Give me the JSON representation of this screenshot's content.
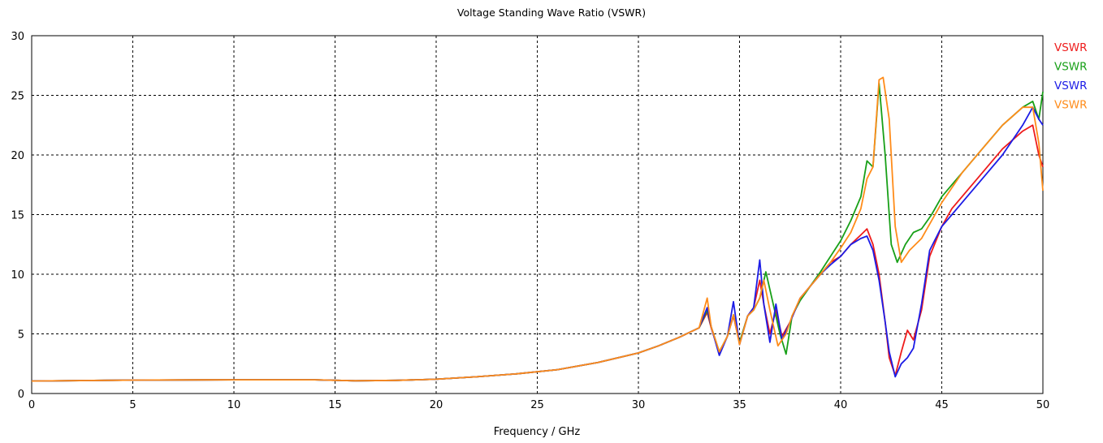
{
  "chart_data": {
    "type": "line",
    "title": "Voltage Standing Wave Ratio (VSWR)",
    "xlabel": "Frequency / GHz",
    "ylabel": "",
    "xlim": [
      0,
      50
    ],
    "ylim": [
      0,
      30
    ],
    "xticks": [
      0,
      5,
      10,
      15,
      20,
      25,
      30,
      35,
      40,
      45,
      50
    ],
    "yticks": [
      0,
      5,
      10,
      15,
      20,
      25,
      30
    ],
    "grid": true,
    "legend_position": "right",
    "series": [
      {
        "name": "VSWR",
        "color": "#ee1c1c",
        "points": [
          [
            0,
            1.05
          ],
          [
            5,
            1.12
          ],
          [
            10,
            1.15
          ],
          [
            14,
            1.15
          ],
          [
            16,
            1.07
          ],
          [
            18,
            1.1
          ],
          [
            20,
            1.2
          ],
          [
            22,
            1.4
          ],
          [
            24,
            1.65
          ],
          [
            26,
            2.0
          ],
          [
            28,
            2.6
          ],
          [
            30,
            3.4
          ],
          [
            31,
            4.0
          ],
          [
            32,
            4.7
          ],
          [
            33,
            5.5
          ],
          [
            33.4,
            6.8
          ],
          [
            33.6,
            5.5
          ],
          [
            34,
            3.4
          ],
          [
            34.4,
            4.8
          ],
          [
            34.7,
            6.5
          ],
          [
            35,
            4.2
          ],
          [
            35.4,
            6.5
          ],
          [
            35.7,
            7.2
          ],
          [
            36,
            9.5
          ],
          [
            36.2,
            7.5
          ],
          [
            36.5,
            5.0
          ],
          [
            36.8,
            7.0
          ],
          [
            37.1,
            4.8
          ],
          [
            37.5,
            6.0
          ],
          [
            38,
            8.0
          ],
          [
            38.5,
            9.0
          ],
          [
            39,
            10.0
          ],
          [
            39.5,
            11.0
          ],
          [
            40,
            11.5
          ],
          [
            40.5,
            12.5
          ],
          [
            41,
            13.3
          ],
          [
            41.3,
            13.8
          ],
          [
            41.6,
            12.5
          ],
          [
            41.9,
            10.0
          ],
          [
            42.2,
            6.0
          ],
          [
            42.4,
            3.0
          ],
          [
            42.7,
            1.5
          ],
          [
            43,
            3.5
          ],
          [
            43.3,
            5.3
          ],
          [
            43.6,
            4.5
          ],
          [
            44,
            7.0
          ],
          [
            44.4,
            11.5
          ],
          [
            45,
            14.0
          ],
          [
            45.5,
            15.5
          ],
          [
            46,
            16.5
          ],
          [
            47,
            18.5
          ],
          [
            48,
            20.5
          ],
          [
            49,
            22.0
          ],
          [
            49.5,
            22.5
          ],
          [
            49.8,
            20.0
          ],
          [
            50,
            19.0
          ]
        ]
      },
      {
        "name": "VSWR",
        "color": "#18a018",
        "points": [
          [
            0,
            1.05
          ],
          [
            5,
            1.12
          ],
          [
            10,
            1.15
          ],
          [
            14,
            1.15
          ],
          [
            16,
            1.07
          ],
          [
            18,
            1.1
          ],
          [
            20,
            1.2
          ],
          [
            22,
            1.4
          ],
          [
            24,
            1.65
          ],
          [
            26,
            2.0
          ],
          [
            28,
            2.6
          ],
          [
            30,
            3.4
          ],
          [
            31,
            4.0
          ],
          [
            32,
            4.7
          ],
          [
            33,
            5.5
          ],
          [
            33.4,
            7.0
          ],
          [
            33.6,
            5.6
          ],
          [
            34,
            3.5
          ],
          [
            34.4,
            4.8
          ],
          [
            34.7,
            6.6
          ],
          [
            35,
            4.3
          ],
          [
            35.4,
            6.5
          ],
          [
            35.7,
            7.0
          ],
          [
            36,
            8.0
          ],
          [
            36.3,
            10.2
          ],
          [
            36.6,
            8.0
          ],
          [
            37,
            5.0
          ],
          [
            37.3,
            3.3
          ],
          [
            37.6,
            6.5
          ],
          [
            38,
            7.8
          ],
          [
            38.5,
            9.0
          ],
          [
            39,
            10.2
          ],
          [
            39.5,
            11.5
          ],
          [
            40,
            12.8
          ],
          [
            40.5,
            14.5
          ],
          [
            41,
            16.5
          ],
          [
            41.3,
            19.5
          ],
          [
            41.6,
            19.0
          ],
          [
            41.9,
            26.0
          ],
          [
            42.2,
            20.0
          ],
          [
            42.5,
            12.5
          ],
          [
            42.8,
            11.0
          ],
          [
            43.2,
            12.5
          ],
          [
            43.6,
            13.5
          ],
          [
            44,
            13.8
          ],
          [
            44.5,
            15.0
          ],
          [
            45,
            16.5
          ],
          [
            46,
            18.5
          ],
          [
            47,
            20.5
          ],
          [
            48,
            22.5
          ],
          [
            49,
            24.0
          ],
          [
            49.5,
            24.5
          ],
          [
            49.8,
            23.0
          ],
          [
            50,
            25.3
          ]
        ]
      },
      {
        "name": "VSWR",
        "color": "#1c1ce6",
        "points": [
          [
            0,
            1.05
          ],
          [
            5,
            1.12
          ],
          [
            10,
            1.15
          ],
          [
            14,
            1.15
          ],
          [
            16,
            1.07
          ],
          [
            18,
            1.1
          ],
          [
            20,
            1.2
          ],
          [
            22,
            1.4
          ],
          [
            24,
            1.65
          ],
          [
            26,
            2.0
          ],
          [
            28,
            2.6
          ],
          [
            30,
            3.4
          ],
          [
            31,
            4.0
          ],
          [
            32,
            4.7
          ],
          [
            33,
            5.5
          ],
          [
            33.4,
            7.2
          ],
          [
            33.6,
            5.6
          ],
          [
            34,
            3.2
          ],
          [
            34.4,
            4.8
          ],
          [
            34.7,
            7.7
          ],
          [
            35,
            4.1
          ],
          [
            35.4,
            6.5
          ],
          [
            35.7,
            7.2
          ],
          [
            36,
            11.2
          ],
          [
            36.2,
            7.5
          ],
          [
            36.5,
            4.3
          ],
          [
            36.8,
            7.5
          ],
          [
            37.1,
            4.5
          ],
          [
            37.5,
            6.0
          ],
          [
            38,
            8.0
          ],
          [
            38.5,
            9.0
          ],
          [
            39,
            10.0
          ],
          [
            39.5,
            10.8
          ],
          [
            40,
            11.5
          ],
          [
            40.5,
            12.5
          ],
          [
            41,
            13.0
          ],
          [
            41.3,
            13.2
          ],
          [
            41.6,
            12.0
          ],
          [
            41.9,
            9.5
          ],
          [
            42.2,
            6.0
          ],
          [
            42.4,
            3.5
          ],
          [
            42.7,
            1.4
          ],
          [
            43,
            2.5
          ],
          [
            43.3,
            3.0
          ],
          [
            43.6,
            3.8
          ],
          [
            44,
            7.5
          ],
          [
            44.4,
            12.0
          ],
          [
            45,
            14.0
          ],
          [
            45.5,
            15.0
          ],
          [
            46,
            16.0
          ],
          [
            47,
            18.0
          ],
          [
            48,
            20.0
          ],
          [
            49,
            22.5
          ],
          [
            49.5,
            24.0
          ],
          [
            49.8,
            23.0
          ],
          [
            50,
            22.5
          ]
        ]
      },
      {
        "name": "VSWR",
        "color": "#ff8c1a",
        "points": [
          [
            0,
            1.05
          ],
          [
            5,
            1.12
          ],
          [
            10,
            1.15
          ],
          [
            14,
            1.15
          ],
          [
            16,
            1.07
          ],
          [
            18,
            1.1
          ],
          [
            20,
            1.2
          ],
          [
            22,
            1.4
          ],
          [
            24,
            1.65
          ],
          [
            26,
            2.0
          ],
          [
            28,
            2.6
          ],
          [
            30,
            3.4
          ],
          [
            31,
            4.0
          ],
          [
            32,
            4.7
          ],
          [
            33,
            5.5
          ],
          [
            33.4,
            8.0
          ],
          [
            33.6,
            5.6
          ],
          [
            34,
            3.5
          ],
          [
            34.4,
            4.8
          ],
          [
            34.7,
            6.6
          ],
          [
            35,
            4.1
          ],
          [
            35.4,
            6.5
          ],
          [
            35.7,
            7.0
          ],
          [
            36,
            8.0
          ],
          [
            36.2,
            9.5
          ],
          [
            36.5,
            7.0
          ],
          [
            36.9,
            4.0
          ],
          [
            37.3,
            5.0
          ],
          [
            37.6,
            6.5
          ],
          [
            38,
            8.0
          ],
          [
            38.5,
            9.0
          ],
          [
            39,
            10.0
          ],
          [
            39.5,
            11.0
          ],
          [
            40,
            12.2
          ],
          [
            40.5,
            13.5
          ],
          [
            41,
            15.5
          ],
          [
            41.3,
            18.0
          ],
          [
            41.6,
            19.0
          ],
          [
            41.9,
            26.3
          ],
          [
            42.1,
            26.5
          ],
          [
            42.4,
            23.0
          ],
          [
            42.7,
            14.0
          ],
          [
            43,
            11.0
          ],
          [
            43.4,
            12.0
          ],
          [
            44,
            13.0
          ],
          [
            44.5,
            14.5
          ],
          [
            45,
            16.0
          ],
          [
            46,
            18.5
          ],
          [
            47,
            20.5
          ],
          [
            48,
            22.5
          ],
          [
            49,
            24.0
          ],
          [
            49.5,
            24.0
          ],
          [
            49.8,
            21.0
          ],
          [
            50,
            17.0
          ]
        ]
      }
    ]
  }
}
